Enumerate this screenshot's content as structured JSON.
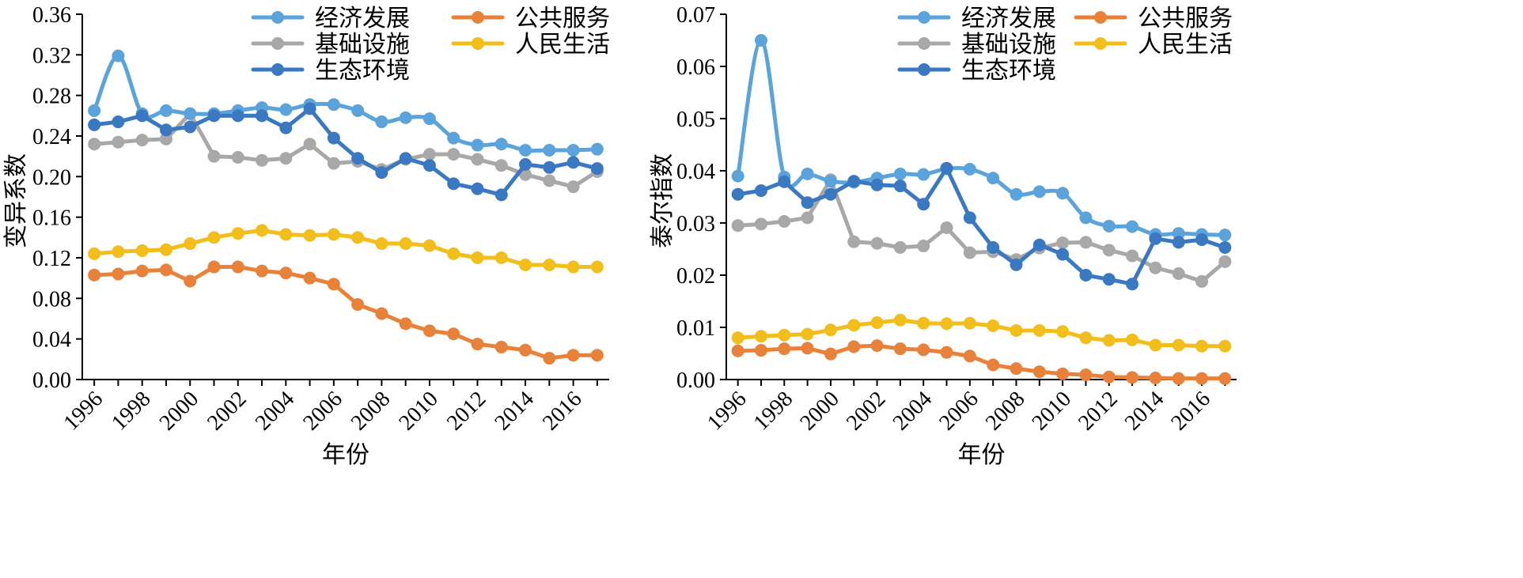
{
  "chart_data": [
    {
      "type": "line",
      "title": "",
      "xlabel": "年份",
      "ylabel": "变异系数",
      "x": [
        1996,
        1997,
        1998,
        1999,
        2000,
        2001,
        2002,
        2003,
        2004,
        2005,
        2006,
        2007,
        2008,
        2009,
        2010,
        2011,
        2012,
        2013,
        2014,
        2015,
        2016,
        2017
      ],
      "xticks": [
        1996,
        1998,
        2000,
        2002,
        2004,
        2006,
        2008,
        2010,
        2012,
        2014,
        2016
      ],
      "xlim": [
        1995.5,
        2017.5
      ],
      "ylim": [
        0,
        0.36
      ],
      "yticks": [
        0.0,
        0.04,
        0.08,
        0.12,
        0.16,
        0.2,
        0.24,
        0.28,
        0.32,
        0.36
      ],
      "ytick_labels": [
        "0.00",
        "0.04",
        "0.08",
        "0.12",
        "0.16",
        "0.20",
        "0.24",
        "0.28",
        "0.32",
        "0.36"
      ],
      "grid": false,
      "legend_position": "top-right",
      "series": [
        {
          "name": "经济发展",
          "color": "#5BA3DB",
          "smooth": true,
          "values": [
            0.265,
            0.319,
            0.262,
            0.265,
            0.262,
            0.262,
            0.265,
            0.268,
            0.266,
            0.271,
            0.271,
            0.265,
            0.254,
            0.258,
            0.257,
            0.238,
            0.231,
            0.232,
            0.226,
            0.226,
            0.226,
            0.227
          ]
        },
        {
          "name": "公共服务",
          "color": "#E8823A",
          "smooth": false,
          "values": [
            0.103,
            0.104,
            0.107,
            0.108,
            0.097,
            0.111,
            0.111,
            0.107,
            0.105,
            0.1,
            0.094,
            0.074,
            0.065,
            0.055,
            0.048,
            0.045,
            0.035,
            0.032,
            0.029,
            0.021,
            0.024,
            0.024
          ]
        },
        {
          "name": "基础设施",
          "color": "#A8A8A8",
          "smooth": false,
          "values": [
            0.232,
            0.234,
            0.236,
            0.237,
            0.262,
            0.22,
            0.219,
            0.216,
            0.218,
            0.232,
            0.213,
            0.215,
            0.207,
            0.217,
            0.222,
            0.222,
            0.217,
            0.211,
            0.202,
            0.196,
            0.19,
            0.205
          ]
        },
        {
          "name": "人民生活",
          "color": "#F2BE1C",
          "smooth": false,
          "values": [
            0.124,
            0.126,
            0.127,
            0.128,
            0.134,
            0.14,
            0.144,
            0.147,
            0.143,
            0.142,
            0.143,
            0.14,
            0.134,
            0.134,
            0.132,
            0.124,
            0.12,
            0.12,
            0.113,
            0.113,
            0.111,
            0.111
          ]
        },
        {
          "name": "生态环境",
          "color": "#3A78C2",
          "smooth": false,
          "values": [
            0.251,
            0.254,
            0.26,
            0.246,
            0.249,
            0.26,
            0.26,
            0.26,
            0.248,
            0.267,
            0.238,
            0.218,
            0.204,
            0.218,
            0.211,
            0.193,
            0.188,
            0.182,
            0.212,
            0.209,
            0.214,
            0.208
          ]
        }
      ]
    },
    {
      "type": "line",
      "title": "",
      "xlabel": "年份",
      "ylabel": "泰尔指数",
      "x": [
        1996,
        1997,
        1998,
        1999,
        2000,
        2001,
        2002,
        2003,
        2004,
        2005,
        2006,
        2007,
        2008,
        2009,
        2010,
        2011,
        2012,
        2013,
        2014,
        2015,
        2016,
        2017
      ],
      "xticks": [
        1996,
        1998,
        2000,
        2002,
        2004,
        2006,
        2008,
        2010,
        2012,
        2014,
        2016
      ],
      "xlim": [
        1995.5,
        2017.5
      ],
      "ylim": [
        0,
        0.07
      ],
      "yticks": [
        0.0,
        0.01,
        0.02,
        0.03,
        0.04,
        0.05,
        0.06,
        0.07
      ],
      "ytick_labels": [
        "0.00",
        "0.01",
        "0.02",
        "0.03",
        "0.04",
        "0.05",
        "0.06",
        "0.07"
      ],
      "grid": false,
      "legend_position": "top-right",
      "series": [
        {
          "name": "经济发展",
          "color": "#5BA3DB",
          "smooth": true,
          "values": [
            0.039,
            0.065,
            0.0388,
            0.0394,
            0.038,
            0.0378,
            0.0386,
            0.0394,
            0.0393,
            0.0404,
            0.0403,
            0.0386,
            0.0355,
            0.036,
            0.0357,
            0.031,
            0.0294,
            0.0293,
            0.0278,
            0.028,
            0.0278,
            0.0277
          ]
        },
        {
          "name": "公共服务",
          "color": "#E8823A",
          "smooth": false,
          "values": [
            0.0055,
            0.0056,
            0.0059,
            0.006,
            0.0049,
            0.0063,
            0.0065,
            0.0059,
            0.0057,
            0.0052,
            0.0045,
            0.0028,
            0.0021,
            0.0015,
            0.0011,
            0.0009,
            0.0005,
            0.0004,
            0.0003,
            0.0002,
            0.0002,
            0.0002
          ]
        },
        {
          "name": "基础设施",
          "color": "#A8A8A8",
          "smooth": false,
          "values": [
            0.0295,
            0.0298,
            0.0303,
            0.031,
            0.0383,
            0.0264,
            0.0261,
            0.0253,
            0.0256,
            0.0291,
            0.0243,
            0.0245,
            0.023,
            0.0252,
            0.0262,
            0.0263,
            0.0248,
            0.0237,
            0.0214,
            0.0203,
            0.0188,
            0.0226
          ]
        },
        {
          "name": "人民生活",
          "color": "#F2BE1C",
          "smooth": false,
          "values": [
            0.008,
            0.0083,
            0.0085,
            0.0087,
            0.0095,
            0.0104,
            0.0109,
            0.0114,
            0.0108,
            0.0107,
            0.0108,
            0.0103,
            0.0094,
            0.0094,
            0.0092,
            0.008,
            0.0075,
            0.0076,
            0.0066,
            0.0066,
            0.0064,
            0.0064
          ]
        },
        {
          "name": "生态环境",
          "color": "#3A78C2",
          "smooth": false,
          "values": [
            0.0355,
            0.0362,
            0.0379,
            0.0339,
            0.0355,
            0.038,
            0.0373,
            0.0371,
            0.0336,
            0.0405,
            0.031,
            0.0253,
            0.022,
            0.0258,
            0.024,
            0.02,
            0.0192,
            0.0183,
            0.027,
            0.0263,
            0.0268,
            0.0253
          ]
        }
      ]
    }
  ]
}
